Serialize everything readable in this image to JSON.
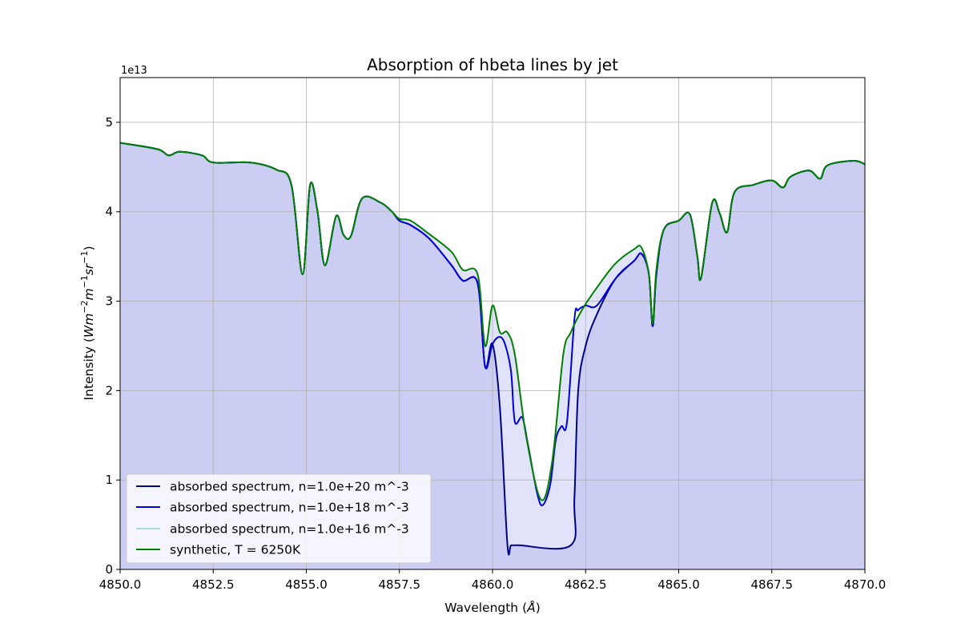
{
  "chart_data": {
    "type": "line",
    "title": "Absorption of hbeta lines by jet",
    "xlabel_prefix": "Wavelength (",
    "xlabel_unit": "Å",
    "xlabel_suffix": ")",
    "ylabel_prefix": "Intensity (",
    "ylabel_suffix": ")",
    "y_offset_label": "1e13",
    "xlim": [
      4850.0,
      4870.0
    ],
    "ylim": [
      0,
      5.5
    ],
    "xticks": [
      4850.0,
      4852.5,
      4855.0,
      4857.5,
      4860.0,
      4862.5,
      4865.0,
      4867.5,
      4870.0
    ],
    "xtick_labels": [
      "4850.0",
      "4852.5",
      "4855.0",
      "4857.5",
      "4860.0",
      "4862.5",
      "4865.0",
      "4867.5",
      "4870.0"
    ],
    "yticks": [
      0,
      1,
      2,
      3,
      4,
      5
    ],
    "ytick_labels": [
      "0",
      "1",
      "2",
      "3",
      "4",
      "5"
    ],
    "grid": true,
    "legend_position": "lower-left",
    "colors": {
      "fill_outer": "#cbcef2",
      "fill_inner": "#e0e3fa"
    },
    "series": [
      {
        "name": "absorbed spectrum, n=1.0e+20 m^-3",
        "color": "#00008b",
        "width": 2,
        "x": [
          4850.0,
          4851.0,
          4851.3,
          4851.6,
          4852.2,
          4852.5,
          4853.5,
          4854.2,
          4854.6,
          4854.9,
          4855.1,
          4855.3,
          4855.5,
          4855.8,
          4856.0,
          4856.2,
          4856.5,
          4857.0,
          4857.3,
          4857.5,
          4857.8,
          4858.3,
          4858.9,
          4859.2,
          4859.6,
          4859.8,
          4860.0,
          4860.2,
          4860.4,
          4860.5,
          4860.7,
          4862.1,
          4862.2,
          4862.3,
          4862.5,
          4862.8,
          4863.3,
          4863.8,
          4864.0,
          4864.2,
          4864.3,
          4864.4,
          4864.6,
          4865.0,
          4865.3,
          4865.5,
          4865.6,
          4865.9,
          4866.1,
          4866.3,
          4866.5,
          4867.0,
          4867.5,
          4867.8,
          4868.0,
          4868.5,
          4868.8,
          4869.0,
          4869.7,
          4870.0
        ],
        "y": [
          4.77,
          4.7,
          4.63,
          4.67,
          4.63,
          4.55,
          4.55,
          4.47,
          4.3,
          3.3,
          4.3,
          4.0,
          3.4,
          3.95,
          3.74,
          3.73,
          4.15,
          4.1,
          4.0,
          3.9,
          3.85,
          3.7,
          3.4,
          3.23,
          3.2,
          2.27,
          2.52,
          1.8,
          0.28,
          0.27,
          0.27,
          0.27,
          0.8,
          2.0,
          2.5,
          2.85,
          3.25,
          3.45,
          3.53,
          3.3,
          2.72,
          3.3,
          3.8,
          3.9,
          3.97,
          3.5,
          3.26,
          4.1,
          3.98,
          3.77,
          4.22,
          4.3,
          4.35,
          4.27,
          4.39,
          4.46,
          4.37,
          4.52,
          4.57,
          4.53
        ]
      },
      {
        "name": "absorbed spectrum, n=1.0e+18 m^-3",
        "color": "#0000dd",
        "width": 2,
        "x": [
          4850.0,
          4851.0,
          4851.3,
          4851.6,
          4852.2,
          4852.5,
          4853.5,
          4854.2,
          4854.6,
          4854.9,
          4855.1,
          4855.3,
          4855.5,
          4855.8,
          4856.0,
          4856.2,
          4856.5,
          4857.0,
          4857.3,
          4857.5,
          4857.8,
          4858.3,
          4858.9,
          4859.2,
          4859.6,
          4859.8,
          4860.0,
          4860.2,
          4860.35,
          4860.5,
          4860.6,
          4860.8,
          4860.95,
          4861.2,
          4861.35,
          4861.55,
          4861.7,
          4861.85,
          4862.0,
          4862.2,
          4862.3,
          4862.5,
          4862.8,
          4863.3,
          4863.8,
          4864.0,
          4864.2,
          4864.3,
          4864.4,
          4864.6,
          4865.0,
          4865.3,
          4865.5,
          4865.6,
          4865.9,
          4866.1,
          4866.3,
          4866.5,
          4867.0,
          4867.5,
          4867.8,
          4868.0,
          4868.5,
          4868.8,
          4869.0,
          4869.7,
          4870.0
        ],
        "y": [
          4.77,
          4.7,
          4.63,
          4.67,
          4.63,
          4.55,
          4.55,
          4.47,
          4.3,
          3.3,
          4.3,
          4.0,
          3.4,
          3.95,
          3.74,
          3.73,
          4.15,
          4.1,
          4.0,
          3.9,
          3.85,
          3.7,
          3.4,
          3.23,
          3.2,
          2.27,
          2.52,
          2.6,
          2.5,
          2.2,
          1.65,
          1.7,
          1.4,
          0.85,
          0.72,
          0.95,
          1.45,
          1.6,
          1.65,
          2.8,
          2.9,
          2.95,
          2.95,
          3.25,
          3.45,
          3.53,
          3.3,
          2.72,
          3.3,
          3.8,
          3.9,
          3.97,
          3.5,
          3.26,
          4.1,
          3.98,
          3.77,
          4.22,
          4.3,
          4.35,
          4.27,
          4.39,
          4.46,
          4.37,
          4.52,
          4.57,
          4.53
        ]
      },
      {
        "name": "absorbed spectrum, n=1.0e+16 m^-3",
        "color": "#add8e6",
        "width": 1.5,
        "x": [
          4850.0,
          4851.0,
          4851.3,
          4851.6,
          4852.2,
          4852.5,
          4853.5,
          4854.2,
          4854.6,
          4854.9,
          4855.1,
          4855.3,
          4855.5,
          4855.8,
          4856.0,
          4856.2,
          4856.5,
          4857.0,
          4857.3,
          4857.5,
          4857.8,
          4858.3,
          4858.9,
          4859.2,
          4859.6,
          4859.8,
          4860.0,
          4860.2,
          4860.4,
          4860.6,
          4860.9,
          4861.3,
          4861.6,
          4861.9,
          4862.1,
          4862.4,
          4862.8,
          4863.3,
          4863.8,
          4864.0,
          4864.2,
          4864.3,
          4864.4,
          4864.6,
          4865.0,
          4865.3,
          4865.5,
          4865.6,
          4865.9,
          4866.1,
          4866.3,
          4866.5,
          4867.0,
          4867.5,
          4867.8,
          4868.0,
          4868.5,
          4868.8,
          4869.0,
          4869.7,
          4870.0
        ],
        "y": [
          4.77,
          4.7,
          4.63,
          4.67,
          4.63,
          4.55,
          4.55,
          4.47,
          4.3,
          3.3,
          4.3,
          4.0,
          3.4,
          3.95,
          3.74,
          3.73,
          4.15,
          4.1,
          4.0,
          3.92,
          3.9,
          3.75,
          3.55,
          3.35,
          3.3,
          2.5,
          2.95,
          2.65,
          2.65,
          2.4,
          1.5,
          0.78,
          1.2,
          2.4,
          2.65,
          2.9,
          3.15,
          3.42,
          3.58,
          3.6,
          3.3,
          2.75,
          3.35,
          3.8,
          3.9,
          3.97,
          3.5,
          3.26,
          4.1,
          3.98,
          3.77,
          4.22,
          4.3,
          4.35,
          4.27,
          4.39,
          4.46,
          4.37,
          4.52,
          4.57,
          4.53
        ]
      },
      {
        "name": "synthetic, T = 6250K",
        "color": "#008000",
        "width": 2,
        "x": [
          4850.0,
          4851.0,
          4851.3,
          4851.6,
          4852.2,
          4852.5,
          4853.5,
          4854.2,
          4854.6,
          4854.9,
          4855.1,
          4855.3,
          4855.5,
          4855.8,
          4856.0,
          4856.2,
          4856.5,
          4857.0,
          4857.3,
          4857.5,
          4857.8,
          4858.3,
          4858.9,
          4859.2,
          4859.6,
          4859.8,
          4860.0,
          4860.2,
          4860.4,
          4860.6,
          4860.9,
          4861.3,
          4861.6,
          4861.9,
          4862.1,
          4862.4,
          4862.8,
          4863.3,
          4863.8,
          4864.0,
          4864.2,
          4864.3,
          4864.4,
          4864.6,
          4865.0,
          4865.3,
          4865.5,
          4865.6,
          4865.9,
          4866.1,
          4866.3,
          4866.5,
          4867.0,
          4867.5,
          4867.8,
          4868.0,
          4868.5,
          4868.8,
          4869.0,
          4869.7,
          4870.0
        ],
        "y": [
          4.77,
          4.7,
          4.63,
          4.67,
          4.63,
          4.55,
          4.55,
          4.47,
          4.3,
          3.3,
          4.3,
          4.0,
          3.4,
          3.95,
          3.74,
          3.73,
          4.15,
          4.1,
          4.0,
          3.92,
          3.9,
          3.75,
          3.55,
          3.35,
          3.3,
          2.5,
          2.95,
          2.65,
          2.65,
          2.4,
          1.5,
          0.78,
          1.2,
          2.4,
          2.65,
          2.9,
          3.15,
          3.42,
          3.58,
          3.6,
          3.3,
          2.75,
          3.35,
          3.8,
          3.9,
          3.97,
          3.5,
          3.26,
          4.1,
          3.98,
          3.77,
          4.22,
          4.3,
          4.35,
          4.27,
          4.39,
          4.46,
          4.37,
          4.52,
          4.57,
          4.53
        ]
      }
    ]
  }
}
